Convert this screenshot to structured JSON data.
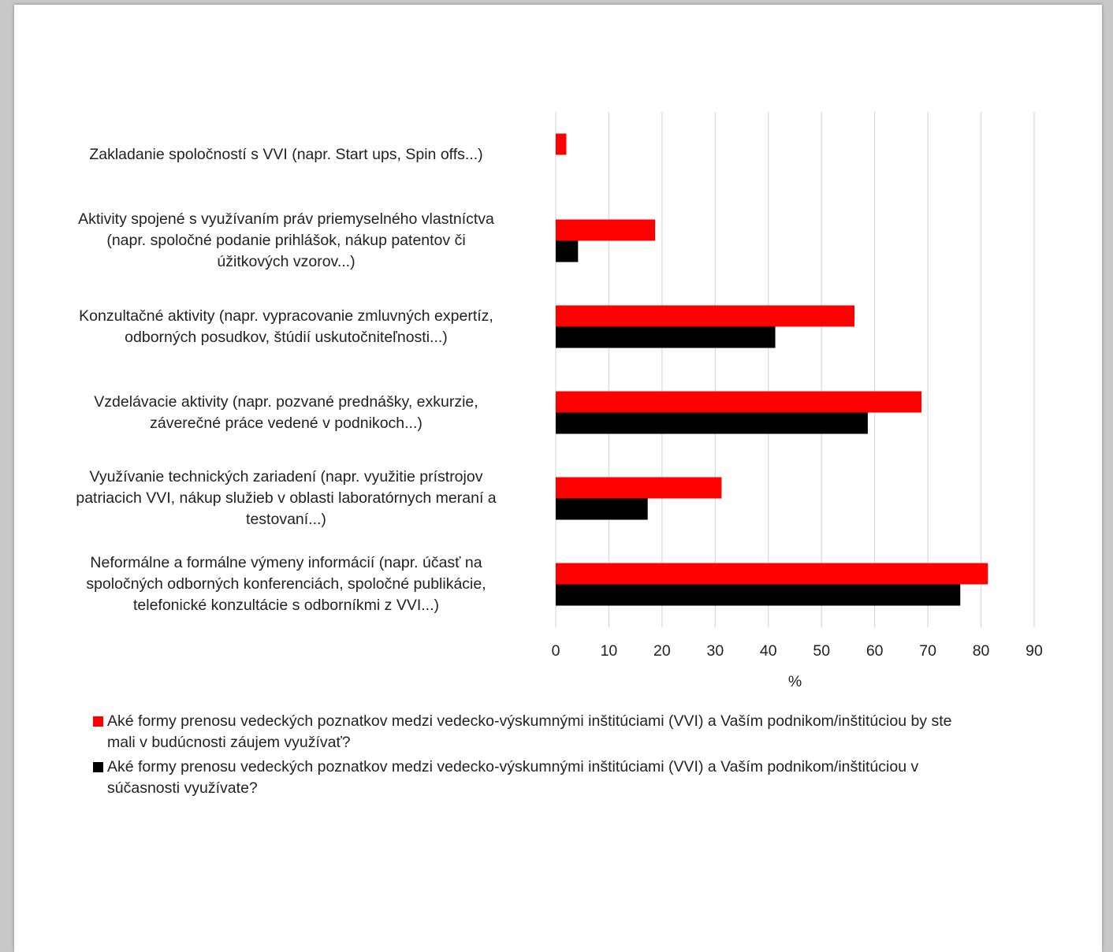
{
  "chart_data": {
    "type": "bar",
    "orientation": "horizontal",
    "categories": [
      "Zakladanie spoločností s VVI (napr. Start ups, Spin offs...)",
      "Aktivity spojené s využívaním práv priemyselného vlastníctva (napr. spoločné podanie prihlášok, nákup patentov či úžitkových vzorov...)",
      "Konzultačné aktivity (napr. vypracovanie zmluvných expertíz, odborných posudkov, štúdií uskutočniteľnosti...)",
      "Vzdelávacie aktivity (napr. pozvané prednášky, exkurzie, záverečné práce vedené v podnikoch...)",
      "Využívanie technických zariadení (napr. využitie prístrojov patriacich VVI, nákup služieb v oblasti laboratórnych meraní a testovaní...)",
      "Neformálne a formálne výmeny informácií (napr. účasť na spoločných odborných konferenciách, spoločné publikácie, telefonické konzultácie s odborníkmi z VVI...)"
    ],
    "category_lines": [
      [
        "Zakladanie spoločností s VVI (napr. Start ups, Spin offs...)"
      ],
      [
        "Aktivity spojené s využívaním práv priemyselného vlastníctva",
        "(napr. spoločné podanie prihlášok, nákup patentov či",
        "úžitkových vzorov...)"
      ],
      [
        "Konzultačné aktivity (napr. vypracovanie zmluvných expertíz,",
        "odborných posudkov, štúdií uskutočniteľnosti...)"
      ],
      [
        "Vzdelávacie aktivity (napr. pozvané prednášky, exkurzie,",
        "záverečné práce vedené v podnikoch...)"
      ],
      [
        "Využívanie technických zariadení (napr. využitie prístrojov",
        "patriacich VVI, nákup služieb v oblasti laboratórnych meraní a",
        "testovaní...)"
      ],
      [
        "Neformálne a formálne výmeny informácií (napr. účasť na",
        "spoločných odborných konferenciách, spoločné publikácie,",
        "telefonické konzultácie s odborníkmi z VVI...)"
      ]
    ],
    "series": [
      {
        "name": "Aké formy prenosu vedeckých poznatkov medzi vedecko-výskumnými inštitúciami (VVI) a Vaším podnikom/inštitúciou by ste mali v budúcnosti záujem využívať?",
        "legend_lines": [
          "Aké formy prenosu vedeckých poznatkov medzi vedecko-výskumnými inštitúciami (VVI) a Vaším podnikom/inštitúciou by ste",
          "mali v budúcnosti záujem využívať?"
        ],
        "color": "#ff0000",
        "values": [
          2.0,
          18.7,
          56.2,
          68.8,
          31.2,
          81.3
        ]
      },
      {
        "name": "Aké formy prenosu vedeckých poznatkov medzi vedecko-výskumnými inštitúciami (VVI) a Vaším podnikom/inštitúciou v súčasnosti využívate?",
        "legend_lines": [
          "Aké formy prenosu vedeckých poznatkov medzi vedecko-výskumnými inštitúciami (VVI) a Vaším podnikom/inštitúciou v",
          "súčasnosti využívate?"
        ],
        "color": "#000000",
        "values": [
          0,
          4.2,
          41.3,
          58.7,
          17.3,
          76.1
        ]
      }
    ],
    "xlabel": "%",
    "xlim": [
      0,
      90
    ],
    "xticks": [
      0,
      10,
      20,
      30,
      40,
      50,
      60,
      70,
      80,
      90
    ],
    "grid": "vertical",
    "legend_position": "bottom"
  }
}
